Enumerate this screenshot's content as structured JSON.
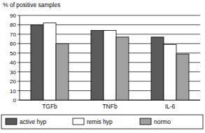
{
  "chart_data": {
    "type": "bar",
    "y_label": "% of positive samples",
    "categories": [
      "TGFb",
      "TNFb",
      "IL-6"
    ],
    "series": [
      {
        "name": "active hyp",
        "color": "#5a5a5a",
        "values": [
          80,
          74,
          67
        ]
      },
      {
        "name": "remis hyp",
        "color": "#ffffff",
        "values": [
          82,
          74,
          59
        ]
      },
      {
        "name": "normo",
        "color": "#a0a0a0",
        "values": [
          60,
          67,
          49
        ]
      }
    ],
    "ylim": [
      0,
      90
    ],
    "yticks": [
      0,
      10,
      20,
      30,
      40,
      50,
      60,
      70,
      80,
      90
    ],
    "grid": true,
    "legend": "bottom"
  }
}
